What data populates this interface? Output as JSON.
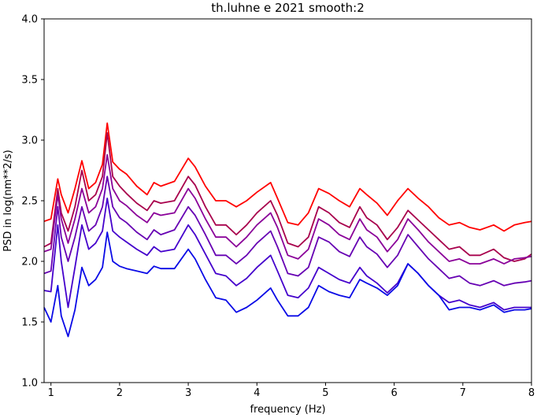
{
  "chart_data": {
    "type": "line",
    "title": "th.luhne e 2021 smooth:2",
    "xlabel": "frequency (Hz)",
    "ylabel": "PSD in log(nm**2/s)",
    "xlim": [
      0.9,
      8.0
    ],
    "ylim": [
      1.0,
      4.0
    ],
    "xticks": [
      1,
      2,
      3,
      4,
      5,
      6,
      7,
      8
    ],
    "xtick_labels": [
      "1",
      "2",
      "3",
      "4",
      "5",
      "6",
      "7",
      "8"
    ],
    "yticks": [
      1.0,
      1.5,
      2.0,
      2.5,
      3.0,
      3.5,
      4.0
    ],
    "ytick_labels": [
      "1.0",
      "1.5",
      "2.0",
      "2.5",
      "3.0",
      "3.5",
      "4.0"
    ],
    "grid": false,
    "legend": false,
    "series": [
      {
        "color": "#ff0000",
        "x": [
          0.9,
          1.0,
          1.1,
          1.15,
          1.25,
          1.35,
          1.45,
          1.55,
          1.65,
          1.75,
          1.82,
          1.9,
          2.0,
          2.1,
          2.25,
          2.4,
          2.5,
          2.6,
          2.8,
          3.0,
          3.1,
          3.25,
          3.4,
          3.55,
          3.7,
          3.85,
          4.0,
          4.2,
          4.3,
          4.45,
          4.6,
          4.75,
          4.9,
          5.05,
          5.2,
          5.35,
          5.5,
          5.6,
          5.75,
          5.9,
          6.05,
          6.2,
          6.35,
          6.5,
          6.65,
          6.8,
          6.95,
          7.1,
          7.25,
          7.45,
          7.6,
          7.75,
          7.9,
          8.0
        ],
        "y": [
          2.33,
          2.35,
          2.68,
          2.55,
          2.4,
          2.6,
          2.83,
          2.6,
          2.65,
          2.8,
          3.14,
          2.82,
          2.76,
          2.72,
          2.62,
          2.55,
          2.65,
          2.62,
          2.66,
          2.85,
          2.78,
          2.62,
          2.5,
          2.5,
          2.45,
          2.5,
          2.57,
          2.65,
          2.52,
          2.32,
          2.3,
          2.4,
          2.6,
          2.56,
          2.5,
          2.45,
          2.6,
          2.55,
          2.48,
          2.38,
          2.5,
          2.6,
          2.52,
          2.45,
          2.36,
          2.3,
          2.32,
          2.28,
          2.26,
          2.3,
          2.25,
          2.3,
          2.32,
          2.33
        ]
      },
      {
        "color": "#a8004c",
        "x": [
          0.9,
          1.0,
          1.1,
          1.15,
          1.25,
          1.35,
          1.45,
          1.55,
          1.65,
          1.75,
          1.82,
          1.9,
          2.0,
          2.1,
          2.25,
          2.4,
          2.5,
          2.6,
          2.8,
          3.0,
          3.1,
          3.25,
          3.4,
          3.55,
          3.7,
          3.85,
          4.0,
          4.2,
          4.3,
          4.45,
          4.6,
          4.75,
          4.9,
          5.05,
          5.2,
          5.35,
          5.5,
          5.6,
          5.75,
          5.9,
          6.05,
          6.2,
          6.35,
          6.5,
          6.65,
          6.8,
          6.95,
          7.1,
          7.25,
          7.45,
          7.6,
          7.75,
          7.9,
          8.0
        ],
        "y": [
          2.12,
          2.15,
          2.6,
          2.4,
          2.25,
          2.45,
          2.75,
          2.5,
          2.55,
          2.7,
          3.06,
          2.7,
          2.62,
          2.56,
          2.48,
          2.42,
          2.5,
          2.48,
          2.5,
          2.7,
          2.63,
          2.45,
          2.3,
          2.3,
          2.22,
          2.3,
          2.4,
          2.5,
          2.38,
          2.15,
          2.12,
          2.2,
          2.45,
          2.4,
          2.32,
          2.28,
          2.45,
          2.36,
          2.3,
          2.18,
          2.28,
          2.42,
          2.34,
          2.26,
          2.18,
          2.1,
          2.12,
          2.05,
          2.05,
          2.1,
          2.03,
          2.0,
          2.02,
          2.06
        ]
      },
      {
        "color": "#8a0099",
        "x": [
          0.9,
          1.0,
          1.1,
          1.15,
          1.25,
          1.35,
          1.45,
          1.55,
          1.65,
          1.75,
          1.82,
          1.9,
          2.0,
          2.1,
          2.25,
          2.4,
          2.5,
          2.6,
          2.8,
          3.0,
          3.1,
          3.25,
          3.4,
          3.55,
          3.7,
          3.85,
          4.0,
          4.2,
          4.3,
          4.45,
          4.6,
          4.75,
          4.9,
          5.05,
          5.2,
          5.35,
          5.5,
          5.6,
          5.75,
          5.9,
          6.05,
          6.2,
          6.35,
          6.5,
          6.65,
          6.8,
          6.95,
          7.1,
          7.25,
          7.45,
          7.6,
          7.75,
          7.9,
          8.0
        ],
        "y": [
          2.08,
          2.1,
          2.55,
          2.35,
          2.15,
          2.35,
          2.6,
          2.4,
          2.45,
          2.6,
          2.88,
          2.6,
          2.5,
          2.46,
          2.38,
          2.32,
          2.4,
          2.38,
          2.4,
          2.6,
          2.52,
          2.35,
          2.2,
          2.2,
          2.12,
          2.2,
          2.3,
          2.4,
          2.28,
          2.05,
          2.02,
          2.1,
          2.35,
          2.3,
          2.22,
          2.18,
          2.35,
          2.26,
          2.2,
          2.08,
          2.18,
          2.35,
          2.26,
          2.16,
          2.08,
          2.0,
          2.02,
          1.98,
          1.98,
          2.02,
          1.98,
          2.02,
          2.03,
          2.04
        ]
      },
      {
        "color": "#6600b3",
        "x": [
          0.9,
          1.0,
          1.1,
          1.15,
          1.25,
          1.35,
          1.45,
          1.55,
          1.65,
          1.75,
          1.82,
          1.9,
          2.0,
          2.1,
          2.25,
          2.4,
          2.5,
          2.6,
          2.8,
          3.0,
          3.1,
          3.25,
          3.4,
          3.55,
          3.7,
          3.85,
          4.0,
          4.2,
          4.3,
          4.45,
          4.6,
          4.75,
          4.9,
          5.05,
          5.2,
          5.35,
          5.5,
          5.6,
          5.75,
          5.9,
          6.05,
          6.2,
          6.35,
          6.5,
          6.65,
          6.8,
          6.95,
          7.1,
          7.25,
          7.45,
          7.6,
          7.75,
          7.9,
          8.0
        ],
        "y": [
          1.9,
          1.92,
          2.45,
          2.2,
          2.0,
          2.2,
          2.45,
          2.25,
          2.3,
          2.45,
          2.7,
          2.45,
          2.36,
          2.32,
          2.24,
          2.18,
          2.26,
          2.22,
          2.26,
          2.45,
          2.38,
          2.22,
          2.05,
          2.05,
          1.98,
          2.05,
          2.15,
          2.25,
          2.12,
          1.9,
          1.88,
          1.95,
          2.2,
          2.16,
          2.08,
          2.04,
          2.2,
          2.12,
          2.06,
          1.95,
          2.05,
          2.22,
          2.12,
          2.02,
          1.94,
          1.86,
          1.88,
          1.82,
          1.8,
          1.84,
          1.8,
          1.82,
          1.83,
          1.84
        ]
      },
      {
        "color": "#4400cc",
        "x": [
          0.9,
          1.0,
          1.1,
          1.15,
          1.25,
          1.35,
          1.45,
          1.55,
          1.65,
          1.75,
          1.82,
          1.9,
          2.0,
          2.1,
          2.25,
          2.4,
          2.5,
          2.6,
          2.8,
          3.0,
          3.1,
          3.25,
          3.4,
          3.55,
          3.7,
          3.85,
          4.0,
          4.2,
          4.3,
          4.45,
          4.6,
          4.75,
          4.9,
          5.05,
          5.2,
          5.35,
          5.5,
          5.6,
          5.75,
          5.9,
          6.05,
          6.2,
          6.35,
          6.5,
          6.65,
          6.8,
          6.95,
          7.1,
          7.25,
          7.45,
          7.6,
          7.75,
          7.9,
          8.0
        ],
        "y": [
          1.76,
          1.75,
          2.3,
          2.0,
          1.62,
          1.95,
          2.3,
          2.1,
          2.15,
          2.25,
          2.52,
          2.25,
          2.2,
          2.16,
          2.1,
          2.05,
          2.12,
          2.08,
          2.1,
          2.3,
          2.22,
          2.06,
          1.9,
          1.88,
          1.8,
          1.86,
          1.95,
          2.05,
          1.92,
          1.72,
          1.7,
          1.78,
          1.95,
          1.9,
          1.85,
          1.82,
          1.95,
          1.88,
          1.82,
          1.74,
          1.82,
          1.98,
          1.9,
          1.8,
          1.72,
          1.66,
          1.68,
          1.64,
          1.62,
          1.66,
          1.6,
          1.62,
          1.62,
          1.62
        ]
      },
      {
        "color": "#0a0ae6",
        "x": [
          0.9,
          1.0,
          1.1,
          1.15,
          1.25,
          1.35,
          1.45,
          1.55,
          1.65,
          1.75,
          1.82,
          1.9,
          2.0,
          2.1,
          2.25,
          2.4,
          2.5,
          2.6,
          2.8,
          3.0,
          3.1,
          3.25,
          3.4,
          3.55,
          3.7,
          3.85,
          4.0,
          4.2,
          4.3,
          4.45,
          4.6,
          4.75,
          4.9,
          5.05,
          5.2,
          5.35,
          5.5,
          5.6,
          5.75,
          5.9,
          6.05,
          6.2,
          6.35,
          6.5,
          6.65,
          6.8,
          6.95,
          7.1,
          7.25,
          7.45,
          7.6,
          7.75,
          7.9,
          8.0
        ],
        "y": [
          1.62,
          1.5,
          1.8,
          1.55,
          1.38,
          1.6,
          1.95,
          1.8,
          1.85,
          1.95,
          2.24,
          2.0,
          1.96,
          1.94,
          1.92,
          1.9,
          1.96,
          1.94,
          1.94,
          2.1,
          2.02,
          1.85,
          1.7,
          1.68,
          1.58,
          1.62,
          1.68,
          1.78,
          1.68,
          1.55,
          1.55,
          1.62,
          1.8,
          1.75,
          1.72,
          1.7,
          1.85,
          1.82,
          1.78,
          1.72,
          1.8,
          1.98,
          1.9,
          1.8,
          1.72,
          1.6,
          1.62,
          1.62,
          1.6,
          1.64,
          1.58,
          1.6,
          1.6,
          1.61
        ]
      }
    ]
  }
}
